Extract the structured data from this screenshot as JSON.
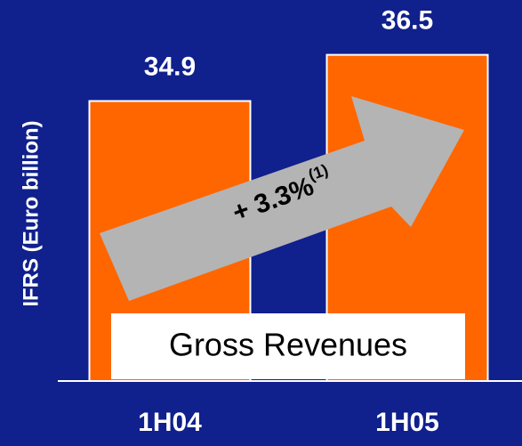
{
  "chart_data": {
    "type": "bar",
    "y_axis_label": "IFRS (Euro billion)",
    "categories": [
      "1H04",
      "1H05"
    ],
    "values": [
      34.9,
      36.5
    ],
    "color": "#ff6600",
    "ylim": [
      25.2,
      38.4
    ],
    "growth_annotation": {
      "text": "+ 3.3%",
      "superscript": "(1)"
    },
    "series_label": "Gross Revenues"
  }
}
